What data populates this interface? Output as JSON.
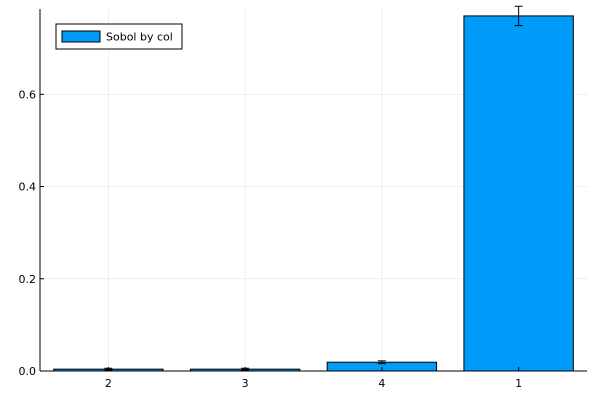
{
  "chart_data": {
    "type": "bar",
    "categories": [
      "2",
      "3",
      "4",
      "1"
    ],
    "series": [
      {
        "name": "Sobol by col",
        "values": [
          0.004,
          0.004,
          0.019,
          0.77
        ],
        "errors": [
          0.002,
          0.002,
          0.003,
          0.021
        ],
        "color": "#009af9"
      }
    ],
    "ylim": [
      0,
      0.785
    ],
    "yticks": [
      0.0,
      0.2,
      0.4,
      0.6
    ],
    "ytick_labels": [
      "0.0",
      "0.2",
      "0.4",
      "0.6"
    ],
    "grid": true,
    "legend_position": "top-left",
    "title": "",
    "xlabel": "",
    "ylabel": ""
  }
}
